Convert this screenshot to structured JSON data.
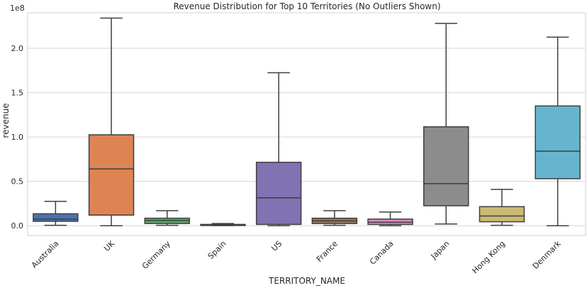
{
  "chart_data": {
    "type": "boxplot",
    "title": "Revenue Distribution for Top 10 Territories (No Outliers Shown)",
    "xlabel": "TERRITORY_NAME",
    "ylabel": "revenue",
    "y_offset_label": "1e8",
    "ylim": [
      -0.11,
      2.4
    ],
    "y_scale": 100000000,
    "grid": true,
    "y_ticks": [
      {
        "value": 0.0,
        "label": "0.0"
      },
      {
        "value": 0.5,
        "label": "0.5"
      },
      {
        "value": 1.0,
        "label": "1.0"
      },
      {
        "value": 1.5,
        "label": "1.5"
      },
      {
        "value": 2.0,
        "label": "2.0"
      }
    ],
    "categories": [
      "Australia",
      "UK",
      "Germany",
      "Spain",
      "US",
      "France",
      "Canada",
      "Japan",
      "Hong Kong",
      "Denmark"
    ],
    "boxes": [
      {
        "category": "Australia",
        "whisker_low": 0.005,
        "q1": 0.05,
        "median": 0.075,
        "q3": 0.135,
        "whisker_high": 0.275,
        "color": "#4c72b0"
      },
      {
        "category": "UK",
        "whisker_low": 0.0,
        "q1": 0.12,
        "median": 0.64,
        "q3": 1.025,
        "whisker_high": 2.34,
        "color": "#dd8452"
      },
      {
        "category": "Germany",
        "whisker_low": 0.005,
        "q1": 0.025,
        "median": 0.06,
        "q3": 0.085,
        "whisker_high": 0.17,
        "color": "#55a868"
      },
      {
        "category": "Spain",
        "whisker_low": 0.002,
        "q1": 0.005,
        "median": 0.01,
        "q3": 0.015,
        "whisker_high": 0.025,
        "color": "#c44e52"
      },
      {
        "category": "US",
        "whisker_low": 0.0,
        "q1": 0.015,
        "median": 0.315,
        "q3": 0.715,
        "whisker_high": 1.725,
        "color": "#8172b3"
      },
      {
        "category": "France",
        "whisker_low": 0.005,
        "q1": 0.025,
        "median": 0.055,
        "q3": 0.085,
        "whisker_high": 0.17,
        "color": "#937860"
      },
      {
        "category": "Canada",
        "whisker_low": 0.0,
        "q1": 0.015,
        "median": 0.04,
        "q3": 0.075,
        "whisker_high": 0.155,
        "color": "#da8bc3"
      },
      {
        "category": "Japan",
        "whisker_low": 0.02,
        "q1": 0.225,
        "median": 0.475,
        "q3": 1.115,
        "whisker_high": 2.28,
        "color": "#8c8c8c"
      },
      {
        "category": "Hong Kong",
        "whisker_low": 0.005,
        "q1": 0.045,
        "median": 0.11,
        "q3": 0.215,
        "whisker_high": 0.41,
        "color": "#ccb974"
      },
      {
        "category": "Denmark",
        "whisker_low": 0.0,
        "q1": 0.53,
        "median": 0.84,
        "q3": 1.35,
        "whisker_high": 2.125,
        "color": "#64b5cd"
      }
    ]
  }
}
